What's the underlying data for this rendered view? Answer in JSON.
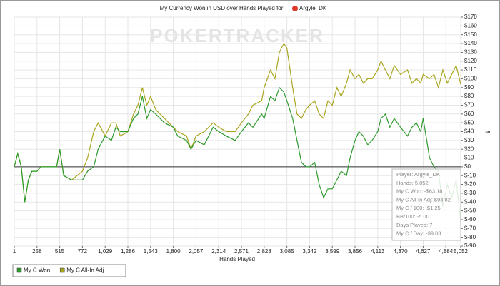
{
  "chart_data": {
    "type": "line",
    "title": "My Currency Won in USD over Hands Played for",
    "title_player": "Argyle_DK",
    "watermark": "POKERTRACKER",
    "x_label": "Hands Played",
    "y_label": "$",
    "x": [
      1,
      40,
      80,
      120,
      160,
      200,
      258,
      300,
      400,
      480,
      515,
      560,
      650,
      772,
      830,
      900,
      950,
      1029,
      1100,
      1150,
      1200,
      1286,
      1350,
      1400,
      1450,
      1500,
      1543,
      1600,
      1700,
      1800,
      1850,
      1950,
      2000,
      2057,
      2150,
      2250,
      2314,
      2400,
      2500,
      2571,
      2650,
      2700,
      2800,
      2828,
      2900,
      2950,
      3000,
      3050,
      3085,
      3150,
      3200,
      3250,
      3300,
      3342,
      3400,
      3450,
      3500,
      3550,
      3599,
      3650,
      3700,
      3760,
      3800,
      3856,
      3900,
      3950,
      4000,
      4050,
      4113,
      4150,
      4200,
      4250,
      4300,
      4370,
      4450,
      4500,
      4550,
      4600,
      4627,
      4700,
      4750,
      4800,
      4850,
      4900,
      4950,
      5000,
      5052
    ],
    "series": [
      {
        "name": "My C All-In Adj",
        "color": "#a9a51e",
        "values": [
          0,
          15,
          0,
          -40,
          -15,
          -5,
          -5,
          0,
          0,
          0,
          20,
          -10,
          -15,
          -5,
          10,
          40,
          50,
          35,
          50,
          50,
          35,
          40,
          60,
          70,
          90,
          70,
          80,
          65,
          55,
          45,
          40,
          35,
          20,
          35,
          40,
          50,
          45,
          40,
          40,
          50,
          60,
          70,
          75,
          90,
          110,
          100,
          130,
          140,
          135,
          90,
          60,
          55,
          65,
          70,
          75,
          60,
          55,
          75,
          70,
          90,
          80,
          95,
          110,
          100,
          105,
          95,
          100,
          100,
          110,
          120,
          110,
          100,
          115,
          105,
          110,
          95,
          100,
          95,
          105,
          100,
          105,
          90,
          110,
          95,
          105,
          115,
          93.82
        ]
      },
      {
        "name": "My C Won",
        "color": "#2e9a2e",
        "values": [
          0,
          15,
          0,
          -40,
          -15,
          -5,
          -5,
          0,
          0,
          0,
          20,
          -10,
          -15,
          -15,
          -5,
          0,
          20,
          35,
          30,
          45,
          40,
          40,
          55,
          60,
          80,
          55,
          65,
          60,
          50,
          45,
          35,
          30,
          20,
          30,
          25,
          45,
          40,
          35,
          30,
          40,
          50,
          45,
          60,
          55,
          80,
          75,
          90,
          85,
          75,
          55,
          30,
          5,
          0,
          0,
          5,
          -20,
          -35,
          -25,
          -25,
          -15,
          -5,
          -10,
          10,
          30,
          40,
          35,
          25,
          30,
          40,
          55,
          60,
          45,
          55,
          45,
          35,
          45,
          50,
          40,
          55,
          10,
          0,
          -5,
          -45,
          -20,
          -35,
          -15,
          -63.18
        ]
      }
    ],
    "legend_order": [
      1,
      0
    ],
    "xlim": [
      1,
      5052
    ],
    "ylim": [
      -90,
      170
    ],
    "xticks": [
      1,
      258,
      515,
      772,
      {
        "value": 1029,
        "label": "1,029"
      },
      {
        "value": 1286,
        "label": "1,286"
      },
      {
        "value": 1543,
        "label": "1,543"
      },
      {
        "value": 1800,
        "label": "1,800"
      },
      {
        "value": 2057,
        "label": "2,057"
      },
      {
        "value": 2314,
        "label": "2,314"
      },
      {
        "value": 2571,
        "label": "2,571"
      },
      {
        "value": 2828,
        "label": "2,828"
      },
      {
        "value": 3085,
        "label": "3,085"
      },
      {
        "value": 3342,
        "label": "3,342"
      },
      {
        "value": 3599,
        "label": "3,599"
      },
      {
        "value": 3856,
        "label": "3,856"
      },
      {
        "value": 4113,
        "label": "4,113"
      },
      {
        "value": 4370,
        "label": "4,370"
      },
      {
        "value": 4627,
        "label": "4,627"
      },
      {
        "value": 4884,
        "label": "4,884"
      },
      {
        "value": 5052,
        "label": "5,052"
      }
    ],
    "yticks": [
      {
        "value": 170,
        "label": "$170"
      },
      {
        "value": 160,
        "label": "$160"
      },
      {
        "value": 150,
        "label": "$150"
      },
      {
        "value": 140,
        "label": "$140"
      },
      {
        "value": 130,
        "label": "$130"
      },
      {
        "value": 120,
        "label": "$120"
      },
      {
        "value": 110,
        "label": "$110"
      },
      {
        "value": 100,
        "label": "$100"
      },
      {
        "value": 90,
        "label": "$90"
      },
      {
        "value": 80,
        "label": "$80"
      },
      {
        "value": 70,
        "label": "$70"
      },
      {
        "value": 60,
        "label": "$60"
      },
      {
        "value": 50,
        "label": "$50"
      },
      {
        "value": 40,
        "label": "$40"
      },
      {
        "value": 30,
        "label": "$30"
      },
      {
        "value": 20,
        "label": "$20"
      },
      {
        "value": 10,
        "label": "$10"
      },
      {
        "value": 0,
        "label": "$0"
      },
      {
        "value": -10,
        "label": "$-10"
      },
      {
        "value": -20,
        "label": "$-20"
      },
      {
        "value": -30,
        "label": "$-30"
      },
      {
        "value": -40,
        "label": "$-40"
      },
      {
        "value": -50,
        "label": "$-50"
      },
      {
        "value": -60,
        "label": "$-60"
      },
      {
        "value": -70,
        "label": "$-70"
      },
      {
        "value": -80,
        "label": "$-80"
      },
      {
        "value": -90,
        "label": "$-90"
      }
    ],
    "grid": true,
    "annotations": [
      "Player: Argyle_DK",
      "Hands: 5,052",
      "My C Won: -$63.18",
      "My C All-In Adj: $93.82",
      "My C / 100: -$1.25",
      "BB/100: -5.00",
      "Days Played: 7",
      "My C / Day: -$9.03"
    ]
  }
}
